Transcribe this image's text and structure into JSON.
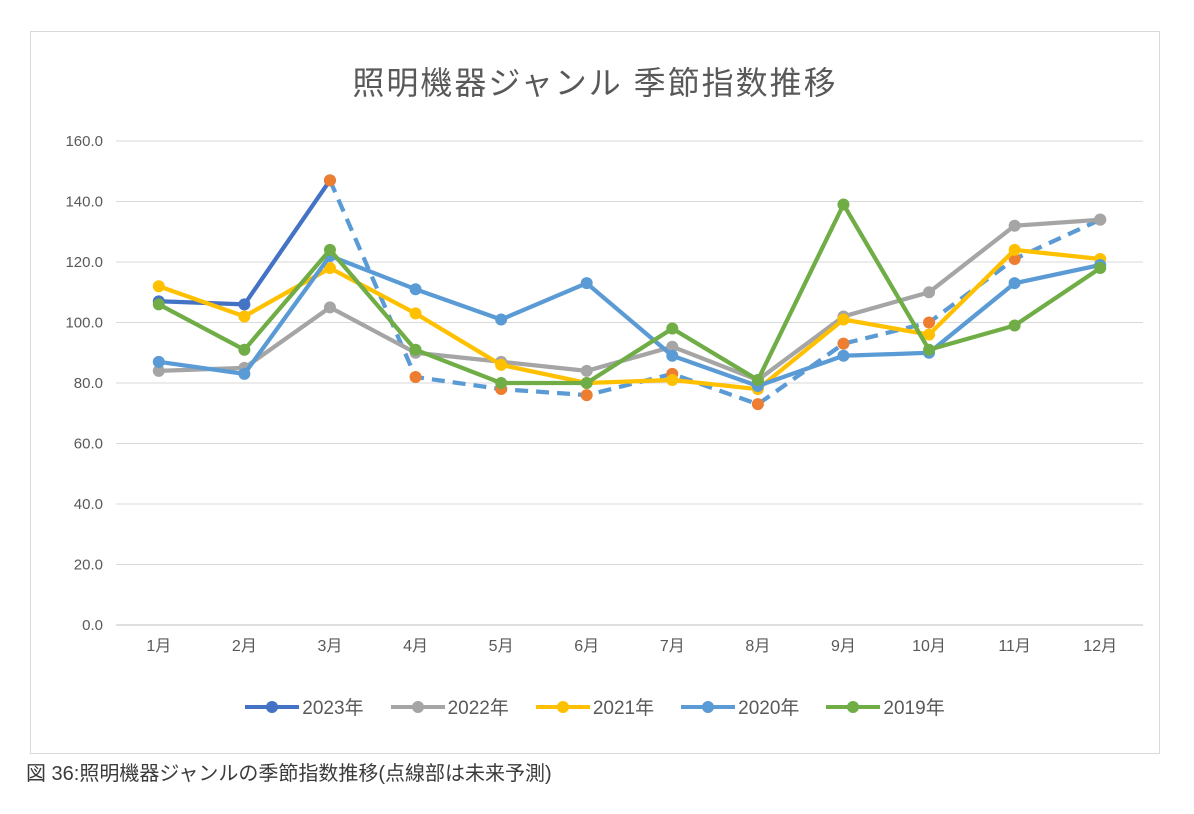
{
  "page": {
    "caption": "図 36:照明機器ジャンルの季節指数推移(点線部は未来予測)"
  },
  "chart_data": {
    "type": "line",
    "title": "照明機器ジャンル 季節指数推移",
    "categories": [
      "1月",
      "2月",
      "3月",
      "4月",
      "5月",
      "6月",
      "7月",
      "8月",
      "9月",
      "10月",
      "11月",
      "12月"
    ],
    "y_axis": {
      "min": 0,
      "max": 160,
      "step": 20,
      "tick_labels": [
        "0.0",
        "20.0",
        "40.0",
        "60.0",
        "80.0",
        "100.0",
        "120.0",
        "140.0",
        "160.0"
      ]
    },
    "grid": true,
    "legend_position": "bottom",
    "note": "点線部は未来予測",
    "series": [
      {
        "name": "2023年",
        "legend": true,
        "color": "#4472C4",
        "marker_color": "#4472C4",
        "line_style": "solid",
        "values": [
          107,
          106,
          147,
          null,
          null,
          null,
          null,
          null,
          null,
          null,
          null,
          null
        ]
      },
      {
        "name": "2023年 未来予測(点線)",
        "legend": false,
        "color": "#5B9BD5",
        "marker_color": "#ED7D31",
        "line_style": "dashed",
        "values": [
          null,
          null,
          147,
          82,
          78,
          76,
          83,
          73,
          93,
          100,
          121,
          134
        ]
      },
      {
        "name": "2022年",
        "legend": true,
        "color": "#A5A5A5",
        "marker_color": "#A5A5A5",
        "line_style": "solid",
        "values": [
          84,
          85,
          105,
          90,
          87,
          84,
          92,
          81,
          102,
          110,
          132,
          134
        ]
      },
      {
        "name": "2021年",
        "legend": true,
        "color": "#FFC000",
        "marker_color": "#FFC000",
        "line_style": "solid",
        "values": [
          112,
          102,
          118,
          103,
          86,
          80,
          81,
          78,
          101,
          96,
          124,
          121
        ]
      },
      {
        "name": "2020年",
        "legend": true,
        "color": "#5B9BD5",
        "marker_color": "#5B9BD5",
        "line_style": "solid",
        "values": [
          87,
          83,
          122,
          111,
          101,
          113,
          89,
          79,
          89,
          90,
          113,
          119
        ]
      },
      {
        "name": "2019年",
        "legend": true,
        "color": "#70AD47",
        "marker_color": "#70AD47",
        "line_style": "solid",
        "values": [
          106,
          91,
          124,
          91,
          80,
          80,
          98,
          81,
          139,
          91,
          99,
          118
        ]
      }
    ]
  }
}
